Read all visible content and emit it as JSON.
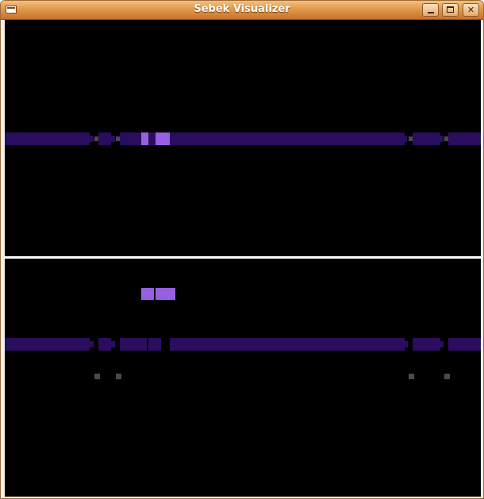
{
  "window": {
    "title": "Sebek Visualizer",
    "controls": {
      "minimize": "minimize-icon",
      "maximize": "maximize-icon",
      "close": "close-icon"
    }
  },
  "colors": {
    "background": "#000000",
    "block_dark": "#2a0d5e",
    "block_highlight": "#9561e0",
    "marker": "#4a4a4a",
    "titlebar": "#e09a4b",
    "divider": "#ffffff"
  }
}
